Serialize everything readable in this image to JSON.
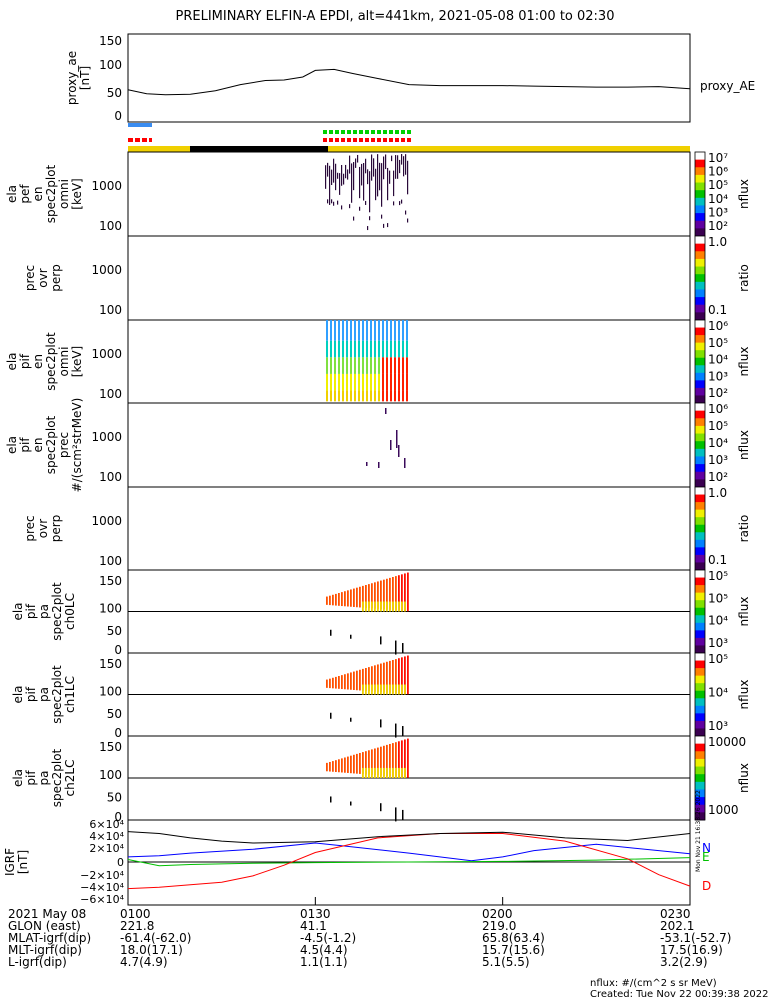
{
  "title": "PRELIMINARY ELFIN-A EPDI, alt=441km, 2021-05-08 01:00 to 02:30",
  "time_ticks": [
    "0100",
    "0130",
    "0200",
    "0230"
  ],
  "panels": {
    "ae": {
      "ylabel": [
        "proxy_ae",
        "[nT]"
      ],
      "yticks": [
        "150",
        "100",
        "50",
        "0"
      ],
      "legend": "proxy_AE"
    },
    "p1": {
      "ylabel": [
        "ela",
        "pef",
        "en",
        "spec2plot",
        "omni",
        "[keV]"
      ],
      "yticks": [
        "1000",
        "100"
      ]
    },
    "p2": {
      "ylabel": [
        "prec",
        "ovr",
        "perp"
      ],
      "yticks": [
        "1000",
        "100"
      ]
    },
    "p3": {
      "ylabel": [
        "ela",
        "pif",
        "en",
        "spec2plot",
        "omni",
        "[keV]"
      ],
      "yticks": [
        "1000",
        "100"
      ]
    },
    "p4": {
      "ylabel": [
        "ela",
        "pif",
        "en",
        "spec2plot",
        "prec",
        "#/(scm²strMeV)"
      ],
      "yticks": [
        "1000",
        "100"
      ]
    },
    "p5": {
      "ylabel": [
        "prec",
        "ovr",
        "perp"
      ],
      "yticks": [
        "1000",
        "100"
      ]
    },
    "p6": {
      "ylabel": [
        "ela",
        "pif",
        "pa",
        "spec2plot",
        "ch0LC"
      ],
      "yticks": [
        "150",
        "100",
        "50",
        "0"
      ]
    },
    "p7": {
      "ylabel": [
        "ela",
        "pif",
        "pa",
        "spec2plot",
        "ch1LC"
      ],
      "yticks": [
        "150",
        "100",
        "50",
        "0"
      ]
    },
    "p8": {
      "ylabel": [
        "ela",
        "pif",
        "pa",
        "spec2plot",
        "ch2LC"
      ],
      "yticks": [
        "150",
        "100",
        "50",
        "0"
      ]
    },
    "igrf": {
      "ylabel": [
        "IGRF",
        "[nT]"
      ],
      "yticks": [
        "6×10⁴",
        "4×10⁴",
        "2×10⁴",
        "0",
        "−2×10⁴",
        "−4×10⁴",
        "−6×10⁴"
      ],
      "legend": [
        "N",
        "E",
        "D"
      ],
      "side_text": "Mon Nov 21 16:38:26 2022"
    }
  },
  "colorbars": [
    {
      "unit": "nflux",
      "ticks": [
        "10⁷",
        "10⁶",
        "10⁵",
        "10⁴",
        "10³",
        "10²"
      ]
    },
    {
      "unit": "ratio",
      "ticks": [
        "1.0",
        "0.1"
      ]
    },
    {
      "unit": "nflux",
      "ticks": [
        "10⁶",
        "10⁵",
        "10⁴",
        "10³",
        "10²"
      ]
    },
    {
      "unit": "nflux",
      "ticks": [
        "10⁶",
        "10⁵",
        "10⁴",
        "10³",
        "10²"
      ]
    },
    {
      "unit": "ratio",
      "ticks": [
        "1.0",
        "0.1"
      ]
    },
    {
      "unit": "nflux",
      "ticks": [
        "10⁵",
        "10⁵",
        "10⁴",
        "10³"
      ]
    },
    {
      "unit": "nflux",
      "ticks": [
        "10⁵",
        "10⁴",
        "10³"
      ]
    },
    {
      "unit": "nflux",
      "ticks": [
        "10000",
        "1000"
      ]
    }
  ],
  "footer": {
    "rows": [
      {
        "label": "2021 May 08",
        "values": [
          "0100",
          "0130",
          "0200",
          "0230"
        ]
      },
      {
        "label": "GLON (east)",
        "values": [
          "221.8",
          "41.1",
          "219.0",
          "202.1"
        ]
      },
      {
        "label": "MLAT-igrf(dip)",
        "values": [
          "-61.4(-62.0)",
          "-4.5(-1.2)",
          "65.8(63.4)",
          "-53.1(-52.7)"
        ]
      },
      {
        "label": "MLT-igrf(dip)",
        "values": [
          "18.0(17.1)",
          "4.5(4.4)",
          "15.7(15.6)",
          "17.5(16.9)"
        ]
      },
      {
        "label": "L-igrf(dip)",
        "values": [
          "4.7(4.9)",
          "1.1(1.1)",
          "5.1(5.5)",
          "3.2(2.9)"
        ]
      }
    ],
    "units_note": "nflux: #/(cm^2 s sr MeV)",
    "created": "Created: Tue Nov 22 00:39:38 2022"
  },
  "chart_data": {
    "type": "line",
    "x_range_utc": [
      "01:00",
      "02:30"
    ],
    "series": [
      {
        "name": "proxy_AE",
        "unit": "nT",
        "x": [
          "01:00",
          "01:03",
          "01:06",
          "01:10",
          "01:14",
          "01:18",
          "01:22",
          "01:25",
          "01:28",
          "01:30",
          "01:33",
          "01:36",
          "01:40",
          "01:45",
          "01:50",
          "01:55",
          "02:00",
          "02:05",
          "02:10",
          "02:15",
          "02:20",
          "02:25",
          "02:30"
        ],
        "values": [
          50,
          42,
          40,
          41,
          48,
          60,
          68,
          69,
          75,
          88,
          90,
          82,
          72,
          60,
          58,
          58,
          58,
          57,
          56,
          55,
          55,
          56,
          52
        ]
      },
      {
        "name": "N",
        "color": "#0000ff",
        "unit": "nT",
        "x": [
          "01:00",
          "01:05",
          "01:10",
          "01:20",
          "01:30",
          "01:35",
          "01:45",
          "01:55",
          "02:00",
          "02:05",
          "02:15",
          "02:30"
        ],
        "values": [
          8000,
          10000,
          14000,
          20000,
          30000,
          25000,
          14000,
          2000,
          8000,
          18000,
          28000,
          13000
        ]
      },
      {
        "name": "E",
        "color": "#00c000",
        "unit": "nT",
        "x": [
          "01:00",
          "01:05",
          "01:10",
          "01:20",
          "01:30",
          "01:45",
          "02:00",
          "02:15",
          "02:30"
        ],
        "values": [
          4000,
          -6000,
          -4000,
          -2000,
          -1000,
          0,
          1000,
          3000,
          7000
        ]
      },
      {
        "name": "D",
        "color": "#ff0000",
        "unit": "nT",
        "x": [
          "01:00",
          "01:05",
          "01:10",
          "01:15",
          "01:20",
          "01:25",
          "01:30",
          "01:40",
          "01:50",
          "02:00",
          "02:10",
          "02:20",
          "02:25",
          "02:30"
        ],
        "values": [
          -42000,
          -40000,
          -36000,
          -32000,
          -22000,
          -5000,
          15000,
          38000,
          45000,
          45000,
          33000,
          5000,
          -20000,
          -38000
        ]
      },
      {
        "name": "total",
        "color": "#000000",
        "unit": "nT",
        "x": [
          "01:00",
          "01:05",
          "01:10",
          "01:15",
          "01:20",
          "01:30",
          "01:40",
          "01:50",
          "02:00",
          "02:10",
          "02:20",
          "02:30"
        ],
        "values": [
          48000,
          45000,
          38000,
          33000,
          30000,
          32000,
          40000,
          45000,
          47000,
          38000,
          34000,
          45000
        ]
      }
    ],
    "ylim_ae": [
      0,
      150
    ],
    "ylim_igrf": [
      -60000,
      60000
    ]
  }
}
